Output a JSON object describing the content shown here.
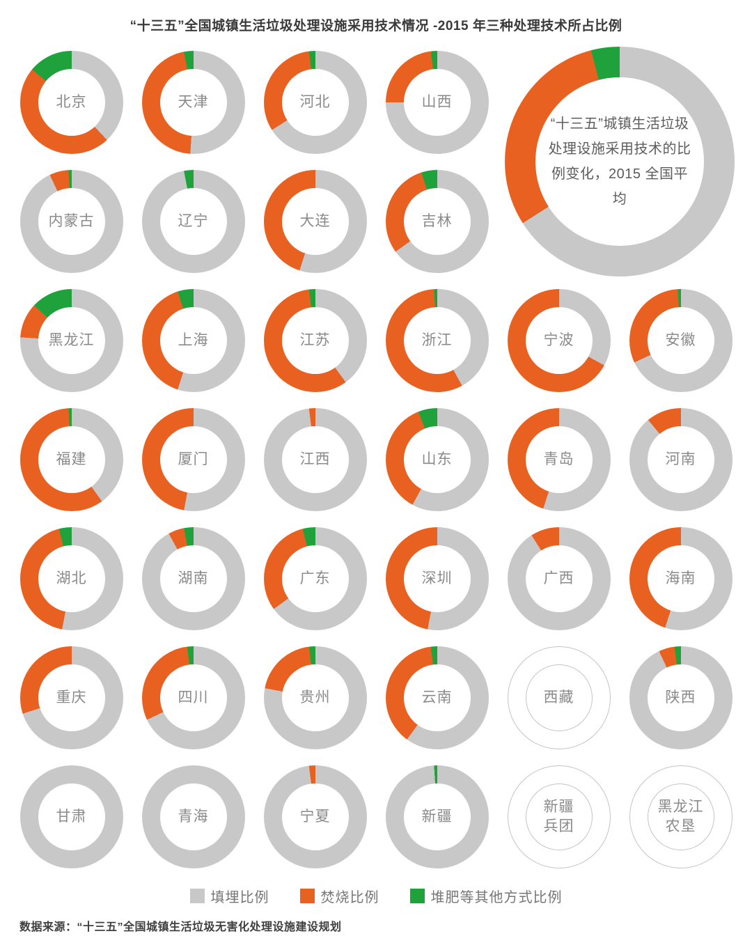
{
  "title": "“十三五”全国城镇生活垃圾处理设施采用技术情况 -2015 年三种处理技术所占比例",
  "source": "数据来源：“十三五”全国城镇生活垃圾无害化处理设施建设规划",
  "colors": {
    "landfill": "#C8C8C8",
    "incineration": "#E96120",
    "compost": "#1FA23C",
    "empty_outline": "#C4C4C4"
  },
  "legend": [
    {
      "label": "填埋比例",
      "color_key": "landfill"
    },
    {
      "label": "焚烧比例",
      "color_key": "incineration"
    },
    {
      "label": "堆肥等其他方式比例",
      "color_key": "compost"
    }
  ],
  "chart_data": {
    "type": "pie",
    "note": "donut charts; values are percent shares in order [landfill, incineration, compost/other], drawn clockwise from 12 o'clock",
    "series_labels": [
      "填埋比例",
      "焚烧比例",
      "堆肥等其他方式比例"
    ],
    "national_average": {
      "label": "“十三五”城镇生活垃圾处理设施采用技术的比例变化，2015 全国平均",
      "values": [
        66,
        30,
        4
      ]
    },
    "provinces": [
      {
        "name": "北京",
        "values": [
          38,
          48,
          14
        ]
      },
      {
        "name": "天津",
        "values": [
          51,
          46,
          3
        ]
      },
      {
        "name": "河北",
        "values": [
          66,
          32,
          2
        ]
      },
      {
        "name": "山西",
        "values": [
          75,
          23,
          2
        ]
      },
      {
        "name": "内蒙古",
        "values": [
          93,
          6,
          1
        ]
      },
      {
        "name": "辽宁",
        "values": [
          97,
          0,
          3
        ]
      },
      {
        "name": "大连",
        "values": [
          55,
          45,
          0
        ]
      },
      {
        "name": "吉林",
        "values": [
          65,
          30,
          5
        ]
      },
      {
        "name": "黑龙江",
        "values": [
          76,
          11,
          13
        ]
      },
      {
        "name": "上海",
        "values": [
          55,
          40,
          5
        ]
      },
      {
        "name": "江苏",
        "values": [
          40,
          58,
          2
        ]
      },
      {
        "name": "浙江",
        "values": [
          42,
          57,
          1
        ]
      },
      {
        "name": "宁波",
        "values": [
          33,
          67,
          0
        ]
      },
      {
        "name": "安徽",
        "values": [
          68,
          31,
          1
        ]
      },
      {
        "name": "福建",
        "values": [
          40,
          59,
          1
        ]
      },
      {
        "name": "厦门",
        "values": [
          53,
          47,
          0
        ]
      },
      {
        "name": "江西",
        "values": [
          98,
          2,
          0
        ]
      },
      {
        "name": "山东",
        "values": [
          58,
          36,
          6
        ]
      },
      {
        "name": "青岛",
        "values": [
          55,
          45,
          0
        ]
      },
      {
        "name": "河南",
        "values": [
          89,
          11,
          0
        ]
      },
      {
        "name": "湖北",
        "values": [
          53,
          43,
          4
        ]
      },
      {
        "name": "湖南",
        "values": [
          92,
          5,
          3
        ]
      },
      {
        "name": "广东",
        "values": [
          65,
          31,
          4
        ]
      },
      {
        "name": "深圳",
        "values": [
          53,
          47,
          0
        ]
      },
      {
        "name": "广西",
        "values": [
          91,
          9,
          0
        ]
      },
      {
        "name": "海南",
        "values": [
          55,
          45,
          0
        ]
      },
      {
        "name": "重庆",
        "values": [
          70,
          30,
          0
        ]
      },
      {
        "name": "四川",
        "values": [
          68,
          30,
          2
        ]
      },
      {
        "name": "贵州",
        "values": [
          78,
          20,
          2
        ]
      },
      {
        "name": "云南",
        "values": [
          60,
          38,
          2
        ]
      },
      {
        "name": "西藏",
        "empty": true
      },
      {
        "name": "陕西",
        "values": [
          93,
          5,
          2
        ]
      },
      {
        "name": "甘肃",
        "values": [
          100,
          0,
          0
        ]
      },
      {
        "name": "青海",
        "values": [
          100,
          0,
          0
        ]
      },
      {
        "name": "宁夏",
        "values": [
          98,
          2,
          0
        ]
      },
      {
        "name": "新疆",
        "values": [
          99,
          0,
          1
        ]
      },
      {
        "name": "新疆兵团",
        "empty": true,
        "label": "新疆\n兵团"
      },
      {
        "name": "黑龙江农垦",
        "empty": true,
        "label": "黑龙江\n农垦"
      }
    ]
  }
}
